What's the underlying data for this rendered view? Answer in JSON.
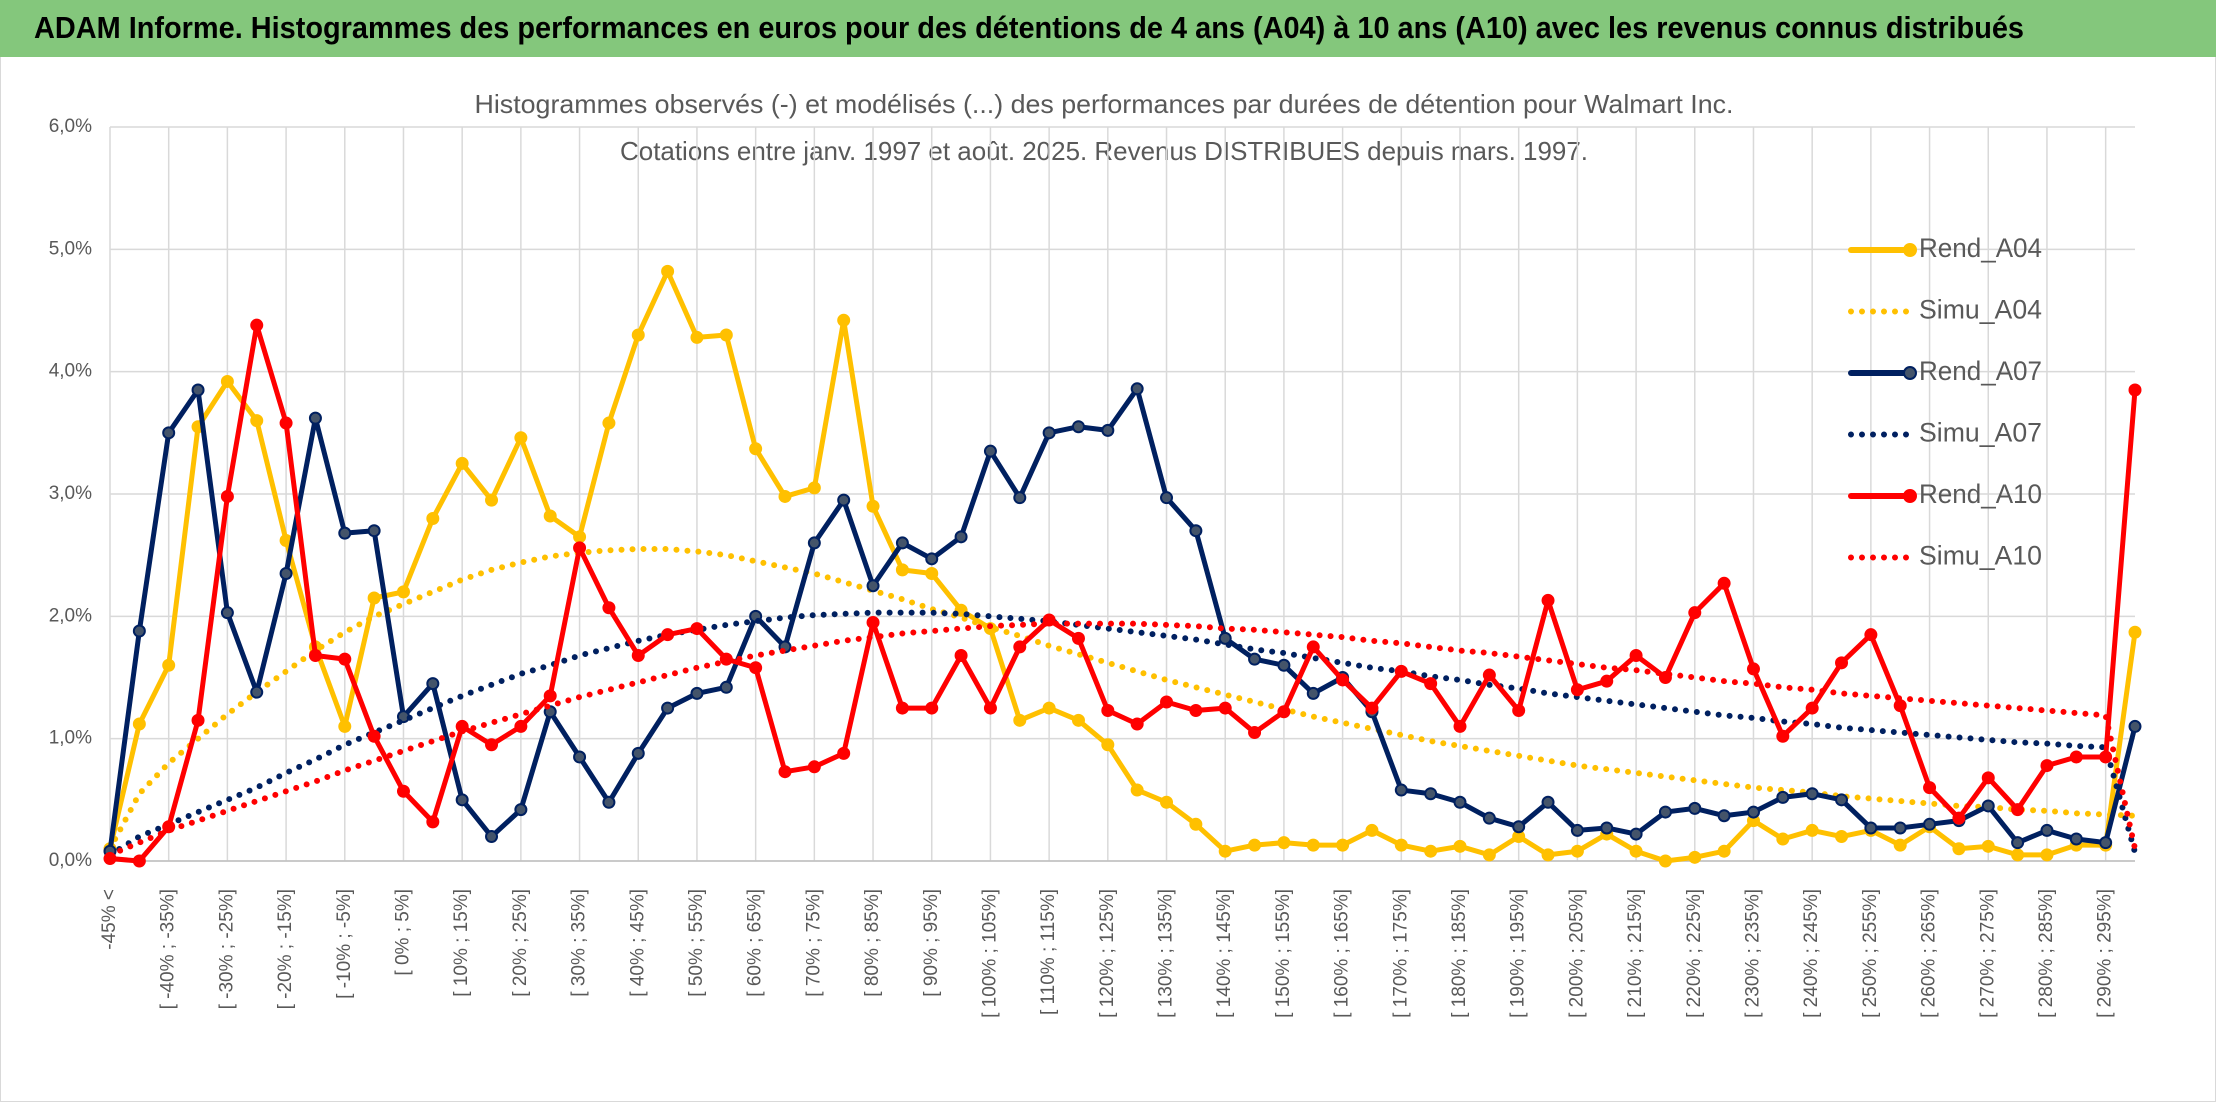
{
  "chart_data": {
    "type": "line",
    "title": "ADAM Informe. Histogrammes des performances en euros pour des détentions de 4 ans (A04) à 10 ans (A10) avec les revenus connus distribués",
    "subtitle": [
      "Histogrammes observés (-) et modélisés (...) des performances par durées de détention pour Walmart Inc.",
      "Cotations entre janv. 1997 et août. 2025. Revenus DISTRIBUES depuis mars. 1997."
    ],
    "categories": [
      "-45% <",
      null,
      "[ -40% ; -35%]",
      null,
      "[ -30% ; -25%]",
      null,
      "[ -20% ; -15%]",
      null,
      "[ -10% ; -5%]",
      null,
      "[ 0% ; 5%]",
      null,
      "[ 10% ; 15%]",
      null,
      "[ 20% ; 25%]",
      null,
      "[ 30% ; 35%]",
      null,
      "[ 40% ; 45%]",
      null,
      "[ 50% ; 55%]",
      null,
      "[ 60% ; 65%]",
      null,
      "[ 70% ; 75%]",
      null,
      "[ 80% ; 85%]",
      null,
      "[ 90% ; 95%]",
      null,
      "[ 100% ; 105%]",
      null,
      "[ 110% ; 115%]",
      null,
      "[ 120% ; 125%]",
      null,
      "[ 130% ; 135%]",
      null,
      "[ 140% ; 145%]",
      null,
      "[ 150% ; 155%]",
      null,
      "[ 160% ; 165%]",
      null,
      "[ 170% ; 175%]",
      null,
      "[ 180% ; 185%]",
      null,
      "[ 190% ; 195%]",
      null,
      "[ 200% ; 205%]",
      null,
      "[ 210% ; 215%]",
      null,
      "[ 220% ; 225%]",
      null,
      "[ 230% ; 235%]",
      null,
      "[ 240% ; 245%]",
      null,
      "[ 250% ; 255%]",
      null,
      "[ 260% ; 265%]",
      null,
      "[ 270% ; 275%]",
      null,
      "[ 280% ; 285%]",
      null,
      "[ 290% ; 295%]",
      null
    ],
    "series": [
      {
        "name": "Rend_A04",
        "color": "#FFC000",
        "style": "solid",
        "markers": true,
        "values": [
          0.1,
          1.12,
          1.6,
          3.55,
          3.92,
          3.6,
          2.62,
          1.75,
          1.1,
          2.15,
          2.2,
          2.8,
          3.25,
          2.95,
          3.46,
          2.82,
          2.65,
          3.58,
          4.3,
          4.82,
          4.28,
          4.3,
          3.37,
          2.98,
          3.05,
          4.42,
          2.9,
          2.38,
          2.35,
          2.05,
          1.9,
          1.15,
          1.25,
          1.15,
          0.95,
          0.58,
          0.48,
          0.3,
          0.08,
          0.13,
          0.15,
          0.13,
          0.13,
          0.25,
          0.13,
          0.08,
          0.12,
          0.05,
          0.2,
          0.05,
          0.08,
          0.22,
          0.08,
          0.0,
          0.03,
          0.08,
          0.33,
          0.18,
          0.25,
          0.2,
          0.25,
          0.13,
          0.28,
          0.1,
          0.12,
          0.05,
          0.05,
          0.13,
          0.13,
          1.87
        ]
      },
      {
        "name": "Simu_A04",
        "color": "#FFC000",
        "style": "dotted",
        "markers": false,
        "values": [
          0.1,
          0.55,
          0.8,
          1.0,
          1.2,
          1.38,
          1.55,
          1.72,
          1.87,
          2.0,
          2.1,
          2.2,
          2.3,
          2.38,
          2.44,
          2.49,
          2.52,
          2.54,
          2.55,
          2.55,
          2.53,
          2.5,
          2.45,
          2.4,
          2.35,
          2.28,
          2.21,
          2.14,
          2.06,
          1.99,
          1.91,
          1.84,
          1.76,
          1.69,
          1.62,
          1.55,
          1.48,
          1.42,
          1.36,
          1.3,
          1.24,
          1.18,
          1.13,
          1.08,
          1.03,
          0.98,
          0.94,
          0.9,
          0.86,
          0.82,
          0.78,
          0.75,
          0.72,
          0.69,
          0.66,
          0.63,
          0.6,
          0.58,
          0.56,
          0.53,
          0.51,
          0.49,
          0.47,
          0.45,
          0.44,
          0.42,
          0.41,
          0.39,
          0.38,
          0.37
        ]
      },
      {
        "name": "Rend_A07",
        "color": "#002060",
        "style": "solid",
        "markers": true,
        "values": [
          0.08,
          1.88,
          3.5,
          3.85,
          2.03,
          1.38,
          2.35,
          3.62,
          2.68,
          2.7,
          1.18,
          1.45,
          0.5,
          0.2,
          0.42,
          1.22,
          0.85,
          0.48,
          0.88,
          1.25,
          1.37,
          1.42,
          2.0,
          1.75,
          2.6,
          2.95,
          2.25,
          2.6,
          2.47,
          2.65,
          3.35,
          2.97,
          3.5,
          3.55,
          3.52,
          3.86,
          2.97,
          2.7,
          1.82,
          1.65,
          1.6,
          1.37,
          1.5,
          1.22,
          0.58,
          0.55,
          0.48,
          0.35,
          0.28,
          0.48,
          0.25,
          0.27,
          0.22,
          0.4,
          0.43,
          0.37,
          0.4,
          0.52,
          0.55,
          0.5,
          0.27,
          0.27,
          0.3,
          0.33,
          0.45,
          0.15,
          0.25,
          0.18,
          0.15,
          1.1
        ]
      },
      {
        "name": "Simu_A07",
        "color": "#002060",
        "style": "dotted",
        "markers": false,
        "values": [
          0.05,
          0.2,
          0.3,
          0.4,
          0.5,
          0.6,
          0.72,
          0.83,
          0.95,
          1.05,
          1.15,
          1.25,
          1.35,
          1.44,
          1.53,
          1.6,
          1.68,
          1.74,
          1.8,
          1.85,
          1.89,
          1.93,
          1.96,
          1.99,
          2.01,
          2.02,
          2.03,
          2.03,
          2.03,
          2.02,
          2.0,
          1.98,
          1.96,
          1.93,
          1.9,
          1.87,
          1.84,
          1.81,
          1.77,
          1.73,
          1.7,
          1.66,
          1.62,
          1.58,
          1.55,
          1.51,
          1.48,
          1.44,
          1.41,
          1.37,
          1.34,
          1.31,
          1.28,
          1.25,
          1.22,
          1.19,
          1.17,
          1.14,
          1.12,
          1.09,
          1.07,
          1.05,
          1.03,
          1.01,
          0.99,
          0.97,
          0.96,
          0.94,
          0.93,
          0.07
        ]
      },
      {
        "name": "Rend_A10",
        "color": "#FF0000",
        "style": "solid",
        "markers": true,
        "values": [
          0.02,
          0.0,
          0.28,
          1.15,
          2.98,
          4.38,
          3.58,
          1.68,
          1.65,
          1.02,
          0.57,
          0.32,
          1.1,
          0.95,
          1.1,
          1.35,
          2.56,
          2.07,
          1.68,
          1.85,
          1.9,
          1.65,
          1.58,
          0.73,
          0.77,
          0.88,
          1.95,
          1.25,
          1.25,
          1.68,
          1.25,
          1.75,
          1.97,
          1.82,
          1.23,
          1.12,
          1.3,
          1.23,
          1.25,
          1.05,
          1.22,
          1.75,
          1.48,
          1.25,
          1.55,
          1.45,
          1.1,
          1.52,
          1.23,
          2.13,
          1.4,
          1.47,
          1.68,
          1.5,
          2.03,
          2.27,
          1.57,
          1.02,
          1.25,
          1.62,
          1.85,
          1.27,
          0.6,
          0.35,
          0.68,
          0.42,
          0.78,
          0.85,
          0.85,
          3.85
        ]
      },
      {
        "name": "Simu_A10",
        "color": "#FF0000",
        "style": "dotted",
        "markers": false,
        "values": [
          0.05,
          0.15,
          0.25,
          0.33,
          0.41,
          0.49,
          0.57,
          0.65,
          0.74,
          0.82,
          0.9,
          0.98,
          1.06,
          1.13,
          1.2,
          1.27,
          1.34,
          1.4,
          1.46,
          1.52,
          1.58,
          1.63,
          1.68,
          1.72,
          1.76,
          1.8,
          1.83,
          1.86,
          1.88,
          1.9,
          1.92,
          1.93,
          1.94,
          1.94,
          1.94,
          1.94,
          1.93,
          1.92,
          1.9,
          1.89,
          1.87,
          1.85,
          1.83,
          1.8,
          1.78,
          1.75,
          1.72,
          1.7,
          1.67,
          1.64,
          1.61,
          1.58,
          1.56,
          1.53,
          1.5,
          1.47,
          1.45,
          1.42,
          1.4,
          1.37,
          1.35,
          1.33,
          1.31,
          1.29,
          1.27,
          1.25,
          1.23,
          1.21,
          1.19,
          0.1
        ]
      }
    ],
    "ylim": [
      0,
      6
    ],
    "yticks": [
      {
        "value": 0,
        "label": "0,0%"
      },
      {
        "value": 1,
        "label": "1,0%"
      },
      {
        "value": 2,
        "label": "2,0%"
      },
      {
        "value": 3,
        "label": "3,0%"
      },
      {
        "value": 4,
        "label": "4,0%"
      },
      {
        "value": 5,
        "label": "5,0%"
      },
      {
        "value": 6,
        "label": "6,0%"
      }
    ],
    "grid": true,
    "legend": "right"
  }
}
